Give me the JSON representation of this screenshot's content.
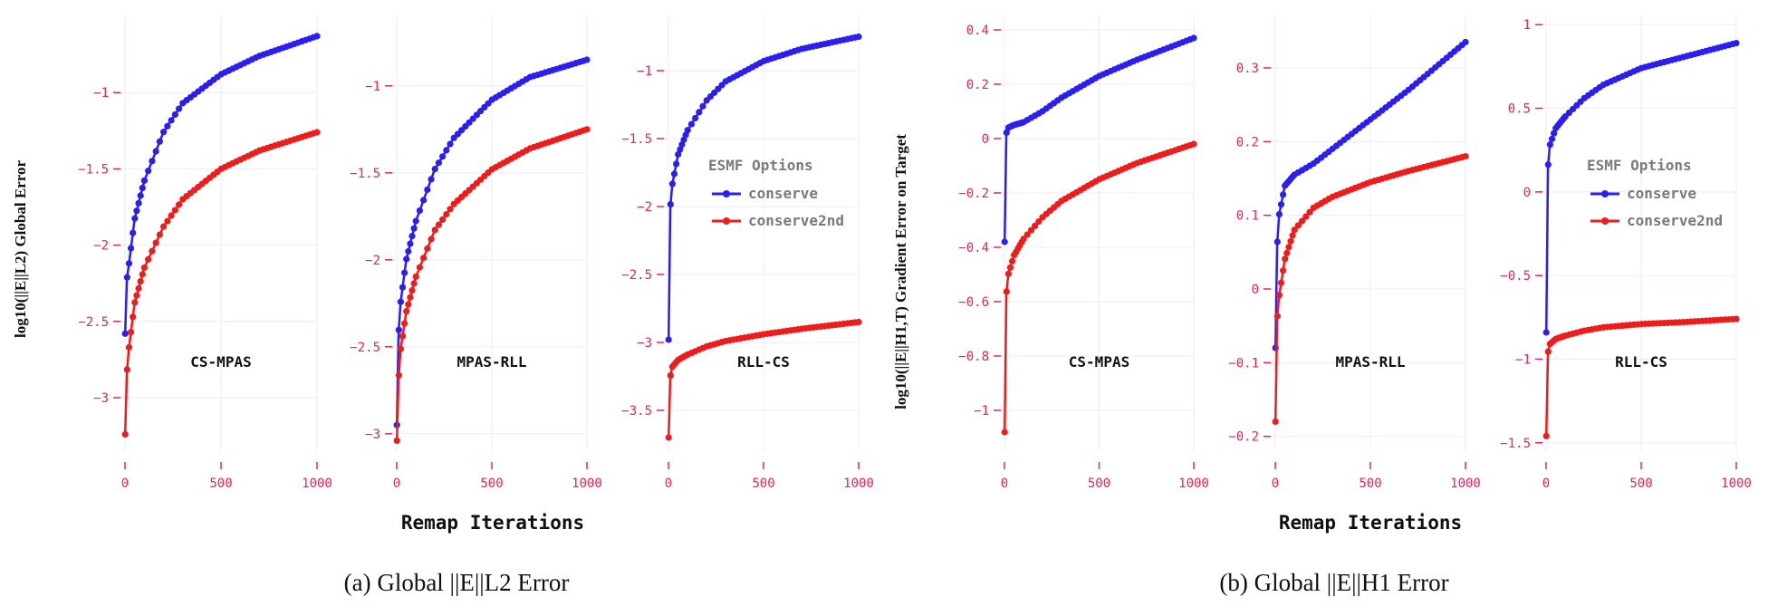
{
  "figure": {
    "left_ylabel": "log10(||E||L2) Global Error",
    "right_ylabel": "log10(||E||H1,T) Gradient Error on Target",
    "left_xlabel": "Remap Iterations",
    "right_xlabel": "Remap Iterations",
    "caption_a": "(a) Global ||E||L2 Error",
    "caption_b": "(b) Global ||E||H1 Error",
    "legend": {
      "title": "ESMF Options",
      "entries": [
        {
          "label": "conserve",
          "color": "#2a1ef0"
        },
        {
          "label": "conserve2nd",
          "color": "#f01b1b"
        }
      ]
    },
    "colors": {
      "conserve": "#2a1ef0",
      "conserve2nd": "#f01b1b",
      "tick": "#e8245a"
    }
  },
  "chart_data": [
    {
      "type": "line",
      "group": "a",
      "title": "CS-MPAS",
      "xlabel": "",
      "ylabel": "",
      "xlim": [
        0,
        1000
      ],
      "ylim": [
        -3.35,
        -0.5
      ],
      "xticks": [
        0,
        500,
        1000
      ],
      "yticks": [
        -3,
        -2.5,
        -2,
        -1.5,
        -1
      ],
      "series": [
        {
          "name": "conserve",
          "x": [
            1,
            10,
            20,
            50,
            100,
            200,
            300,
            500,
            700,
            1000
          ],
          "y": [
            -2.58,
            -2.22,
            -2.13,
            -1.83,
            -1.58,
            -1.26,
            -1.07,
            -0.88,
            -0.76,
            -0.63
          ]
        },
        {
          "name": "conserve2nd",
          "x": [
            1,
            10,
            20,
            50,
            100,
            200,
            300,
            500,
            700,
            1000
          ],
          "y": [
            -3.24,
            -2.83,
            -2.68,
            -2.38,
            -2.15,
            -1.88,
            -1.7,
            -1.5,
            -1.38,
            -1.26
          ]
        }
      ]
    },
    {
      "type": "line",
      "group": "a",
      "title": "MPAS-RLL",
      "xlabel": "",
      "ylabel": "",
      "xlim": [
        0,
        1000
      ],
      "ylim": [
        -3.1,
        -0.6
      ],
      "xticks": [
        0,
        500,
        1000
      ],
      "yticks": [
        -3,
        -2.5,
        -2,
        -1.5,
        -1
      ],
      "series": [
        {
          "name": "conserve",
          "x": [
            1,
            10,
            20,
            50,
            100,
            200,
            300,
            500,
            700,
            1000
          ],
          "y": [
            -2.95,
            -2.42,
            -2.25,
            -2.0,
            -1.78,
            -1.48,
            -1.3,
            -1.08,
            -0.95,
            -0.85
          ]
        },
        {
          "name": "conserve2nd",
          "x": [
            1,
            10,
            20,
            50,
            100,
            200,
            300,
            500,
            700,
            1000
          ],
          "y": [
            -3.04,
            -2.68,
            -2.52,
            -2.3,
            -2.1,
            -1.83,
            -1.68,
            -1.48,
            -1.36,
            -1.25
          ]
        }
      ]
    },
    {
      "type": "line",
      "group": "a",
      "title": "RLL-CS",
      "xlabel": "",
      "ylabel": "",
      "xlim": [
        0,
        1000
      ],
      "ylim": [
        -3.8,
        -0.6
      ],
      "xticks": [
        0,
        500,
        1000
      ],
      "yticks": [
        -3.5,
        -3,
        -2.5,
        -2,
        -1.5,
        -1
      ],
      "series": [
        {
          "name": "conserve",
          "x": [
            1,
            10,
            20,
            50,
            100,
            200,
            300,
            500,
            700,
            1000
          ],
          "y": [
            -2.98,
            -2.0,
            -1.84,
            -1.62,
            -1.44,
            -1.22,
            -1.08,
            -0.93,
            -0.84,
            -0.75
          ]
        },
        {
          "name": "conserve2nd",
          "x": [
            1,
            10,
            20,
            50,
            100,
            200,
            300,
            500,
            700,
            1000
          ],
          "y": [
            -3.7,
            -3.25,
            -3.18,
            -3.13,
            -3.09,
            -3.03,
            -2.99,
            -2.94,
            -2.9,
            -2.85
          ]
        }
      ]
    },
    {
      "type": "line",
      "group": "b",
      "title": "CS-MPAS",
      "xlabel": "",
      "ylabel": "",
      "xlim": [
        0,
        1000
      ],
      "ylim": [
        -1.15,
        0.45
      ],
      "xticks": [
        0,
        500,
        1000
      ],
      "yticks": [
        -1,
        -0.8,
        -0.6,
        -0.4,
        -0.2,
        0,
        0.2,
        0.4
      ],
      "series": [
        {
          "name": "conserve",
          "x": [
            1,
            10,
            20,
            50,
            100,
            200,
            300,
            500,
            700,
            1000
          ],
          "y": [
            -0.38,
            0.02,
            0.04,
            0.05,
            0.06,
            0.1,
            0.15,
            0.23,
            0.29,
            0.37
          ]
        },
        {
          "name": "conserve2nd",
          "x": [
            1,
            10,
            20,
            50,
            100,
            200,
            300,
            500,
            700,
            1000
          ],
          "y": [
            -1.08,
            -0.57,
            -0.5,
            -0.43,
            -0.37,
            -0.29,
            -0.23,
            -0.15,
            -0.09,
            -0.02
          ]
        }
      ]
    },
    {
      "type": "line",
      "group": "b",
      "title": "MPAS-RLL",
      "xlabel": "",
      "ylabel": "",
      "xlim": [
        0,
        1000
      ],
      "ylim": [
        -0.22,
        0.37
      ],
      "xticks": [
        0,
        500,
        1000
      ],
      "yticks": [
        -0.2,
        -0.1,
        0,
        0.1,
        0.2,
        0.3
      ],
      "series": [
        {
          "name": "conserve",
          "x": [
            1,
            10,
            20,
            50,
            100,
            200,
            300,
            500,
            700,
            1000
          ],
          "y": [
            -0.08,
            0.06,
            0.1,
            0.14,
            0.155,
            0.17,
            0.19,
            0.23,
            0.27,
            0.335
          ]
        },
        {
          "name": "conserve2nd",
          "x": [
            1,
            10,
            20,
            50,
            100,
            200,
            300,
            500,
            700,
            1000
          ],
          "y": [
            -0.18,
            -0.04,
            -0.01,
            0.04,
            0.08,
            0.11,
            0.125,
            0.145,
            0.16,
            0.18
          ]
        }
      ]
    },
    {
      "type": "line",
      "group": "b",
      "title": "RLL-CS",
      "xlabel": "",
      "ylabel": "",
      "xlim": [
        0,
        1000
      ],
      "ylim": [
        -1.55,
        1.05
      ],
      "xticks": [
        0,
        500,
        1000
      ],
      "yticks": [
        -1.5,
        -1,
        -0.5,
        0,
        0.5,
        1
      ],
      "series": [
        {
          "name": "conserve",
          "x": [
            1,
            10,
            20,
            50,
            100,
            200,
            300,
            500,
            700,
            1000
          ],
          "y": [
            -0.84,
            0.15,
            0.28,
            0.38,
            0.45,
            0.56,
            0.64,
            0.74,
            0.8,
            0.89
          ]
        },
        {
          "name": "conserve2nd",
          "x": [
            1,
            10,
            20,
            50,
            100,
            200,
            300,
            500,
            700,
            1000
          ],
          "y": [
            -1.46,
            -0.96,
            -0.91,
            -0.88,
            -0.86,
            -0.83,
            -0.81,
            -0.79,
            -0.78,
            -0.76
          ]
        }
      ]
    }
  ]
}
